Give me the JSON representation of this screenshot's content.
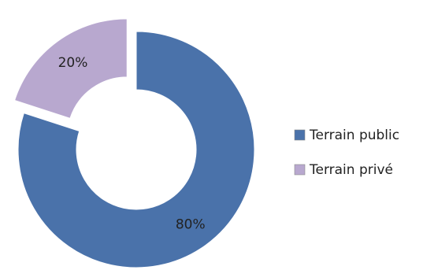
{
  "chart_data": {
    "type": "pie",
    "variant": "donut",
    "categories": [
      "Terrain public",
      "Terrain privé"
    ],
    "values": [
      80,
      20
    ],
    "unit": "%",
    "data_labels": [
      "80%",
      "20%"
    ],
    "colors": [
      "#4a72aa",
      "#b8a8cf"
    ],
    "exploded": [
      false,
      true
    ],
    "legend": {
      "position": "right",
      "entries": [
        "Terrain public",
        "Terrain privé"
      ]
    }
  }
}
